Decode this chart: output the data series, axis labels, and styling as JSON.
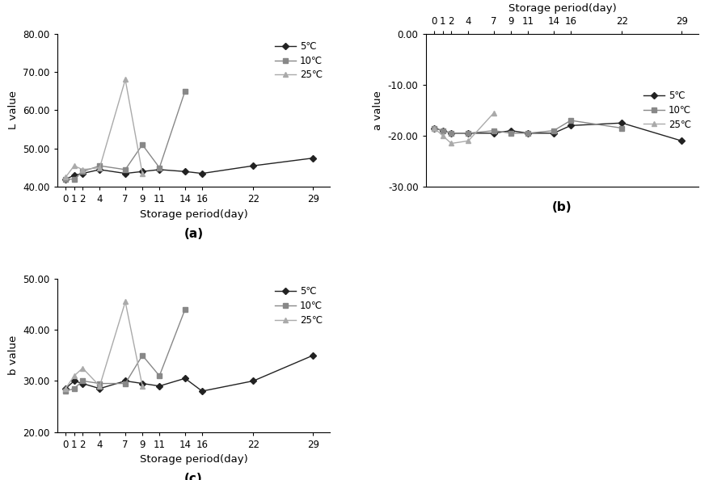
{
  "x_ticks": [
    0,
    1,
    2,
    4,
    7,
    9,
    11,
    14,
    16,
    22,
    29
  ],
  "L_5": [
    42.0,
    43.0,
    43.5,
    44.5,
    43.5,
    44.0,
    44.5,
    44.0,
    43.5,
    45.5,
    47.5
  ],
  "L_10": [
    42.0,
    42.0,
    44.0,
    45.5,
    44.5,
    51.0,
    45.0,
    65.0,
    null,
    null,
    null
  ],
  "L_25": [
    42.5,
    45.5,
    44.5,
    45.0,
    68.0,
    43.5,
    null,
    null,
    null,
    null,
    null
  ],
  "a_5": [
    -18.5,
    -19.0,
    -19.5,
    -19.5,
    -19.5,
    -19.0,
    -19.5,
    -19.5,
    -18.0,
    -17.5,
    -21.0
  ],
  "a_10": [
    -18.5,
    -19.0,
    -19.5,
    -19.5,
    -19.0,
    -19.5,
    -19.5,
    -19.0,
    -17.0,
    -18.5,
    null
  ],
  "a_25": [
    -18.5,
    -20.0,
    -21.5,
    -21.0,
    -15.5,
    null,
    null,
    null,
    null,
    null,
    null
  ],
  "b_5": [
    28.5,
    30.0,
    29.5,
    28.5,
    30.0,
    29.5,
    29.0,
    30.5,
    28.0,
    30.0,
    35.0
  ],
  "b_10": [
    28.0,
    28.5,
    30.0,
    29.5,
    29.5,
    35.0,
    31.0,
    44.0,
    null,
    null,
    null
  ],
  "b_25": [
    28.5,
    31.0,
    32.5,
    29.0,
    45.5,
    29.0,
    null,
    null,
    null,
    null,
    null
  ],
  "colors": {
    "5C": "#222222",
    "10C": "#888888",
    "25C": "#aaaaaa"
  },
  "markers": {
    "5C": "D",
    "10C": "s",
    "25C": "^"
  },
  "L_ylim": [
    40.0,
    80.0
  ],
  "L_yticks": [
    40.0,
    50.0,
    60.0,
    70.0,
    80.0
  ],
  "a_ylim": [
    -30.0,
    0.0
  ],
  "a_yticks": [
    -30.0,
    -20.0,
    -10.0,
    0.0
  ],
  "b_ylim": [
    20.0,
    50.0
  ],
  "b_yticks": [
    20.0,
    30.0,
    40.0,
    50.0
  ],
  "xlabel": "Storage period(day)",
  "L_ylabel": "L value",
  "a_ylabel": "a value",
  "b_ylabel": "b value",
  "legend_labels": [
    "5℃",
    "10℃",
    "25℃"
  ],
  "subplot_labels": [
    "(a)",
    "(b)",
    "(c)"
  ],
  "bg_color": "#ffffff",
  "tick_fontsize": 8.5,
  "label_fontsize": 9.5,
  "legend_fontsize": 8.5,
  "sublabel_fontsize": 11
}
